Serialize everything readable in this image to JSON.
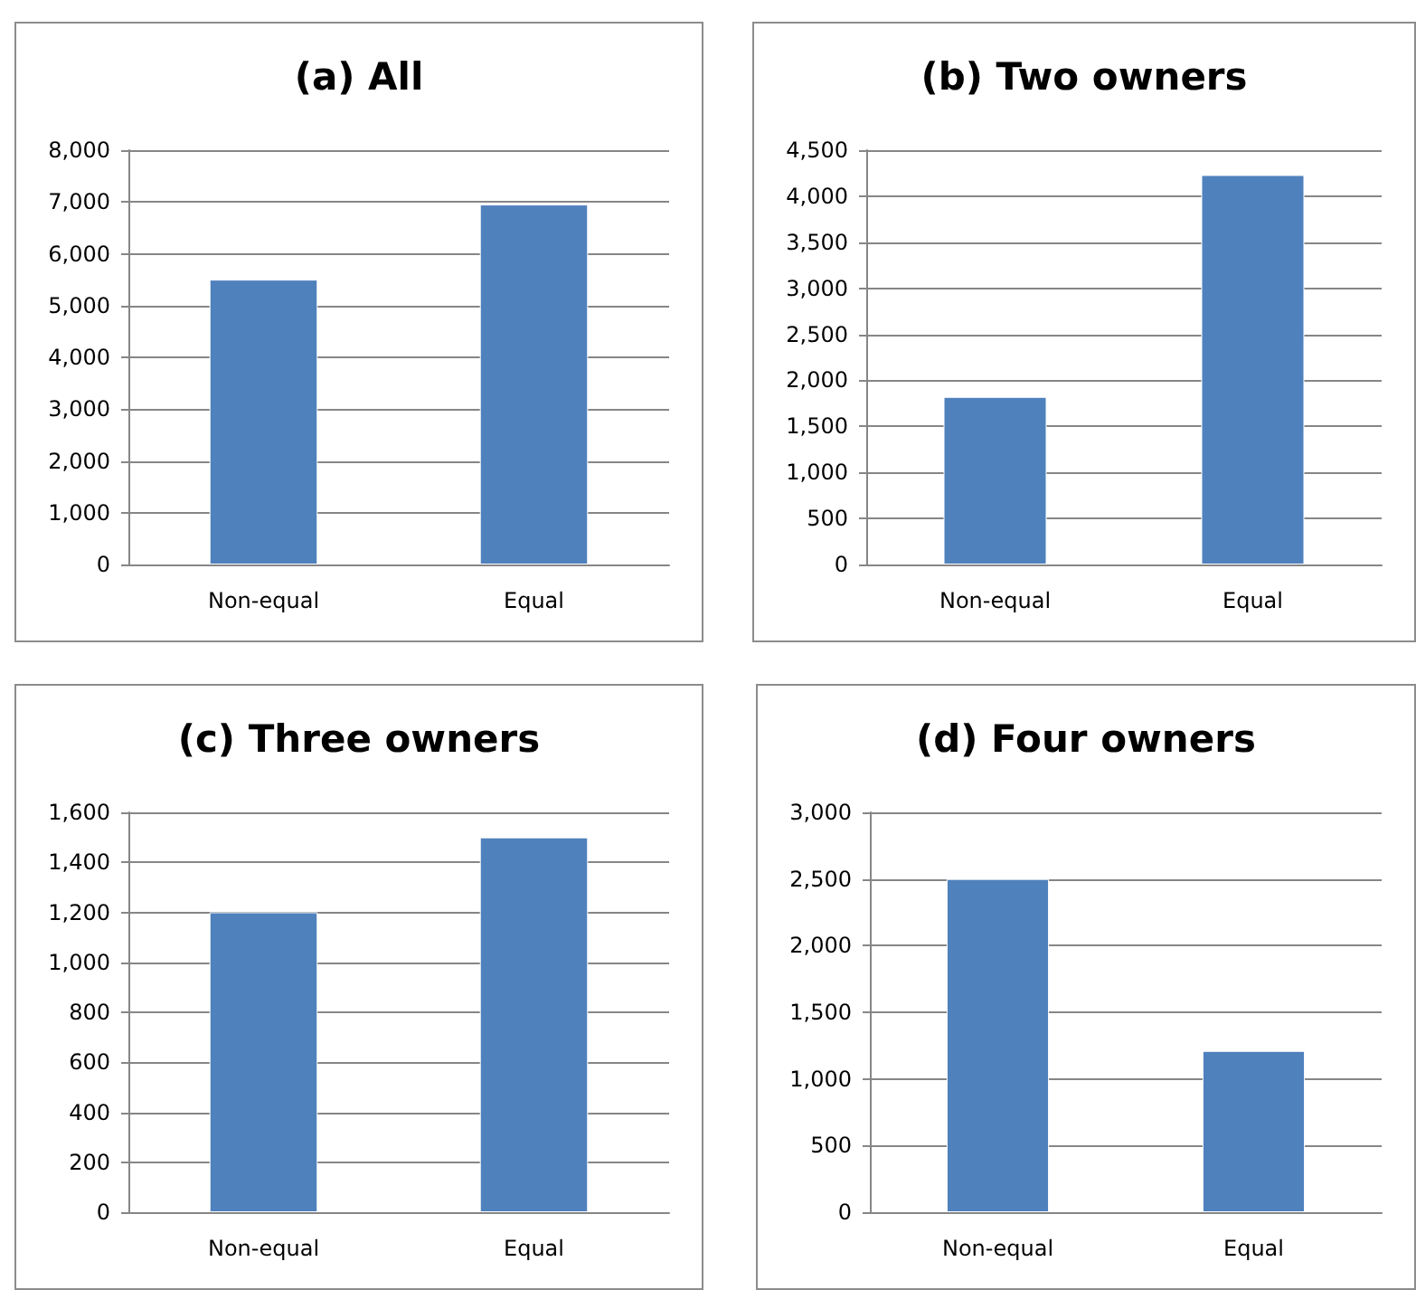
{
  "chart_data": [
    {
      "type": "bar",
      "title": "(a) All",
      "categories": [
        "Non-equal",
        "Equal"
      ],
      "color": "#4f81bd",
      "values": [
        5500,
        6950
      ],
      "ylim": [
        0,
        8000
      ],
      "yticks": [
        0,
        {
          "value": 1000,
          "label": "1,000"
        },
        {
          "value": 2000,
          "label": "2,000"
        },
        {
          "value": 3000,
          "label": "3,000"
        },
        {
          "value": 4000,
          "label": "4,000"
        },
        {
          "value": 5000,
          "label": "5,000"
        },
        {
          "value": 6000,
          "label": "6,000"
        },
        {
          "value": 7000,
          "label": "7,000"
        },
        {
          "value": 8000,
          "label": "8,000"
        }
      ],
      "grid": "y"
    },
    {
      "type": "bar",
      "title": "(b) Two owners",
      "categories": [
        "Non-equal",
        "Equal"
      ],
      "color": "#4f81bd",
      "values": [
        1820,
        4230
      ],
      "ylim": [
        0,
        4500
      ],
      "yticks": [
        0,
        500,
        {
          "value": 1000,
          "label": "1,000"
        },
        {
          "value": 1500,
          "label": "1,500"
        },
        {
          "value": 2000,
          "label": "2,000"
        },
        {
          "value": 2500,
          "label": "2,500"
        },
        {
          "value": 3000,
          "label": "3,000"
        },
        {
          "value": 3500,
          "label": "3,500"
        },
        {
          "value": 4000,
          "label": "4,000"
        },
        {
          "value": 4500,
          "label": "4,500"
        }
      ],
      "grid": "y"
    },
    {
      "type": "bar",
      "title": "(c) Three owners",
      "categories": [
        "Non-equal",
        "Equal"
      ],
      "color": "#4f81bd",
      "values": [
        1200,
        1500
      ],
      "ylim": [
        0,
        1600
      ],
      "yticks": [
        0,
        200,
        400,
        600,
        800,
        {
          "value": 1000,
          "label": "1,000"
        },
        {
          "value": 1200,
          "label": "1,200"
        },
        {
          "value": 1400,
          "label": "1,400"
        },
        {
          "value": 1600,
          "label": "1,600"
        }
      ],
      "grid": "y"
    },
    {
      "type": "bar",
      "title": "(d) Four owners",
      "categories": [
        "Non-equal",
        "Equal"
      ],
      "color": "#4f81bd",
      "values": [
        2500,
        1210
      ],
      "ylim": [
        0,
        3000
      ],
      "yticks": [
        0,
        500,
        {
          "value": 1000,
          "label": "1,000"
        },
        {
          "value": 1500,
          "label": "1,500"
        },
        {
          "value": 2000,
          "label": "2,000"
        },
        {
          "value": 2500,
          "label": "2,500"
        },
        {
          "value": 3000,
          "label": "3,000"
        }
      ],
      "grid": "y"
    }
  ]
}
